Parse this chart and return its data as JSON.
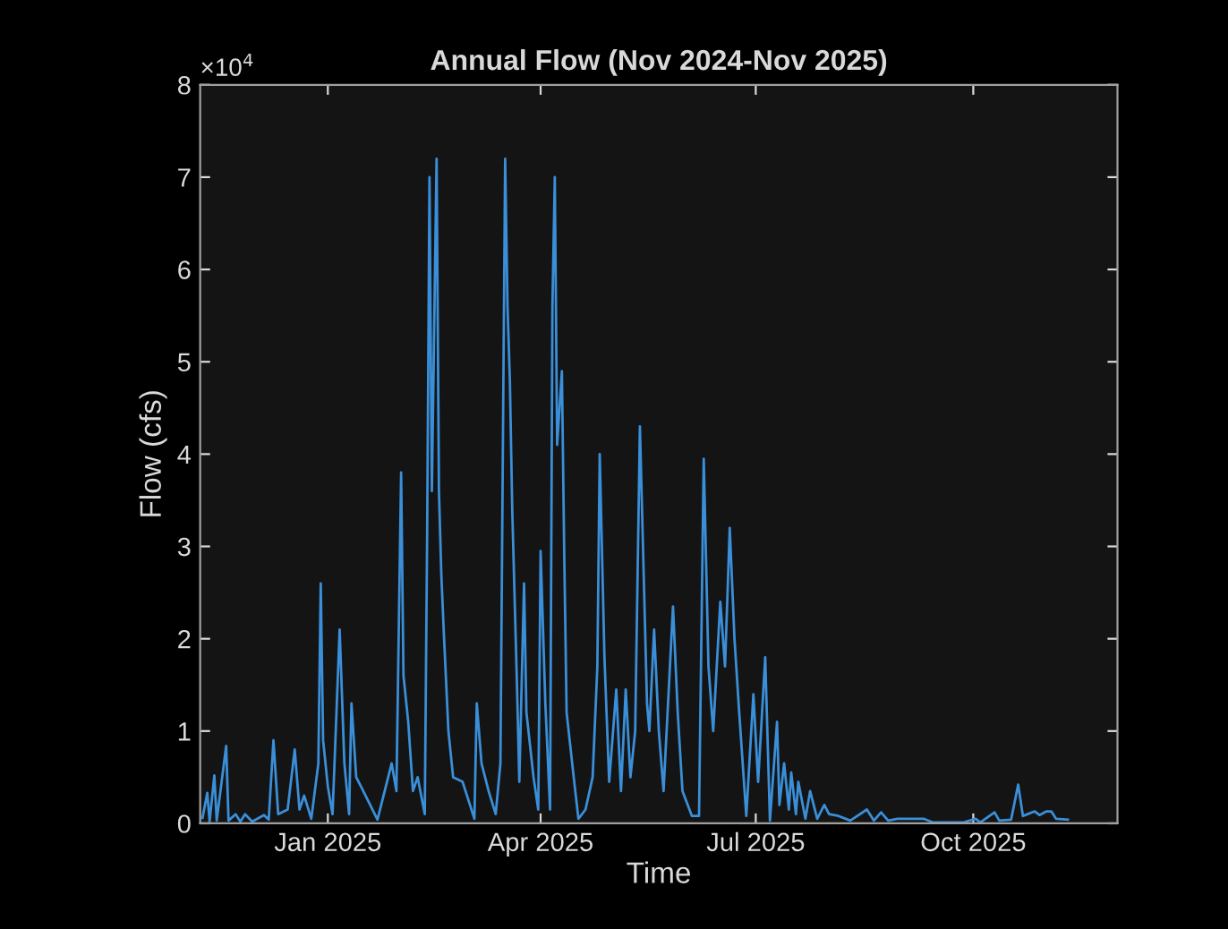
{
  "chart_data": {
    "type": "line",
    "title": "Annual Flow (Nov 2024-Nov 2025)",
    "xlabel": "Time",
    "ylabel": "Flow (cfs)",
    "annotations": [
      "×10$^{4}$"
    ],
    "xlim": [
      "2024-11-08",
      "2025-12-01"
    ],
    "xticks": [
      {
        "value": "2025-01-01",
        "label": "Jan 2025"
      },
      {
        "value": "2025-04-01",
        "label": "Apr 2025"
      },
      {
        "value": "2025-07-01",
        "label": "Jul 2025"
      },
      {
        "value": "2025-10-01",
        "label": "Oct 2025"
      }
    ],
    "ylim": [
      0,
      8
    ],
    "yticks": [
      0,
      1,
      2,
      3,
      4,
      5,
      6,
      7,
      8
    ],
    "grid": false,
    "marker": "none",
    "line_style": "solid",
    "series": [
      {
        "color": "#3a8fd8",
        "x": [
          "2024-11-09",
          "2024-11-11",
          "2024-11-12",
          "2024-11-14",
          "2024-11-15",
          "2024-11-19",
          "2024-11-20",
          "2024-11-23",
          "2024-11-25",
          "2024-11-27",
          "2024-11-30",
          "2024-12-05",
          "2024-12-07",
          "2024-12-09",
          "2024-12-11",
          "2024-12-15",
          "2024-12-18",
          "2024-12-20",
          "2024-12-22",
          "2024-12-25",
          "2024-12-28",
          "2024-12-29",
          "2024-12-30",
          "2025-01-01",
          "2025-01-03",
          "2025-01-06",
          "2025-01-08",
          "2025-01-10",
          "2025-01-11",
          "2025-01-13",
          "2025-01-16",
          "2025-01-22",
          "2025-01-28",
          "2025-01-30",
          "2025-02-01",
          "2025-02-02",
          "2025-02-04",
          "2025-02-06",
          "2025-02-08",
          "2025-02-11",
          "2025-02-12",
          "2025-02-13",
          "2025-02-14",
          "2025-02-16",
          "2025-02-17",
          "2025-02-18",
          "2025-02-19",
          "2025-02-21",
          "2025-02-23",
          "2025-02-27",
          "2025-03-04",
          "2025-03-05",
          "2025-03-07",
          "2025-03-10",
          "2025-03-13",
          "2025-03-15",
          "2025-03-17",
          "2025-03-18",
          "2025-03-19",
          "2025-03-20",
          "2025-03-22",
          "2025-03-23",
          "2025-03-25",
          "2025-03-26",
          "2025-03-29",
          "2025-03-31",
          "2025-04-01",
          "2025-04-03",
          "2025-04-05",
          "2025-04-06",
          "2025-04-07",
          "2025-04-08",
          "2025-04-10",
          "2025-04-11",
          "2025-04-12",
          "2025-04-15",
          "2025-04-17",
          "2025-04-20",
          "2025-04-23",
          "2025-04-25",
          "2025-04-26",
          "2025-04-28",
          "2025-04-30",
          "2025-05-03",
          "2025-05-05",
          "2025-05-07",
          "2025-05-09",
          "2025-05-11",
          "2025-05-13",
          "2025-05-14",
          "2025-05-16",
          "2025-05-17",
          "2025-05-19",
          "2025-05-21",
          "2025-05-23",
          "2025-05-27",
          "2025-05-29",
          "2025-05-31",
          "2025-06-04",
          "2025-06-07",
          "2025-06-09",
          "2025-06-11",
          "2025-06-13",
          "2025-06-16",
          "2025-06-18",
          "2025-06-20",
          "2025-06-22",
          "2025-06-24",
          "2025-06-27",
          "2025-06-30",
          "2025-07-02",
          "2025-07-05",
          "2025-07-07",
          "2025-07-10",
          "2025-07-11",
          "2025-07-13",
          "2025-07-15",
          "2025-07-16",
          "2025-07-18",
          "2025-07-19",
          "2025-07-22",
          "2025-07-24",
          "2025-07-27",
          "2025-07-30",
          "2025-08-01",
          "2025-08-05",
          "2025-08-10",
          "2025-08-17",
          "2025-08-20",
          "2025-08-23",
          "2025-08-26",
          "2025-08-30",
          "2025-09-04",
          "2025-09-10",
          "2025-09-14",
          "2025-09-27",
          "2025-10-02",
          "2025-10-04",
          "2025-10-10",
          "2025-10-12",
          "2025-10-17",
          "2025-10-20",
          "2025-10-22",
          "2025-10-24",
          "2025-10-27",
          "2025-10-29",
          "2025-11-01",
          "2025-11-03",
          "2025-11-05",
          "2025-11-10"
        ],
        "values": [
          0.06,
          0.33,
          0.02,
          0.52,
          0.03,
          0.84,
          0.03,
          0.1,
          0.02,
          0.1,
          0.02,
          0.09,
          0.04,
          0.9,
          0.1,
          0.15,
          0.8,
          0.15,
          0.3,
          0.05,
          0.65,
          2.6,
          0.9,
          0.4,
          0.1,
          2.1,
          0.65,
          0.1,
          1.3,
          0.5,
          0.35,
          0.04,
          0.65,
          0.35,
          3.8,
          1.6,
          1.1,
          0.35,
          0.5,
          0.1,
          3.1,
          7.0,
          3.6,
          7.2,
          3.6,
          2.7,
          2.1,
          1.0,
          0.5,
          0.45,
          0.05,
          1.3,
          0.65,
          0.35,
          0.1,
          0.65,
          7.2,
          5.6,
          4.8,
          3.4,
          1.5,
          0.45,
          2.6,
          1.2,
          0.5,
          0.15,
          2.95,
          1.3,
          0.15,
          5.6,
          7.0,
          4.1,
          4.9,
          2.9,
          1.2,
          0.5,
          0.05,
          0.15,
          0.5,
          1.7,
          4.0,
          1.8,
          0.45,
          1.45,
          0.35,
          1.45,
          0.5,
          1.0,
          4.3,
          3.3,
          1.3,
          1.0,
          2.1,
          1.0,
          0.35,
          2.35,
          1.2,
          0.35,
          0.08,
          0.08,
          3.95,
          1.7,
          1.0,
          2.4,
          1.7,
          3.2,
          2.0,
          1.2,
          0.08,
          1.4,
          0.45,
          1.8,
          0.03,
          1.1,
          0.2,
          0.65,
          0.15,
          0.55,
          0.1,
          0.45,
          0.05,
          0.35,
          0.05,
          0.2,
          0.1,
          0.08,
          0.03,
          0.15,
          0.03,
          0.12,
          0.03,
          0.05,
          0.05,
          0.05,
          0.01,
          0.01,
          0.05,
          0.01,
          0.12,
          0.03,
          0.04,
          0.42,
          0.08,
          0.1,
          0.13,
          0.09,
          0.13,
          0.13,
          0.05,
          0.04
        ]
      }
    ]
  }
}
